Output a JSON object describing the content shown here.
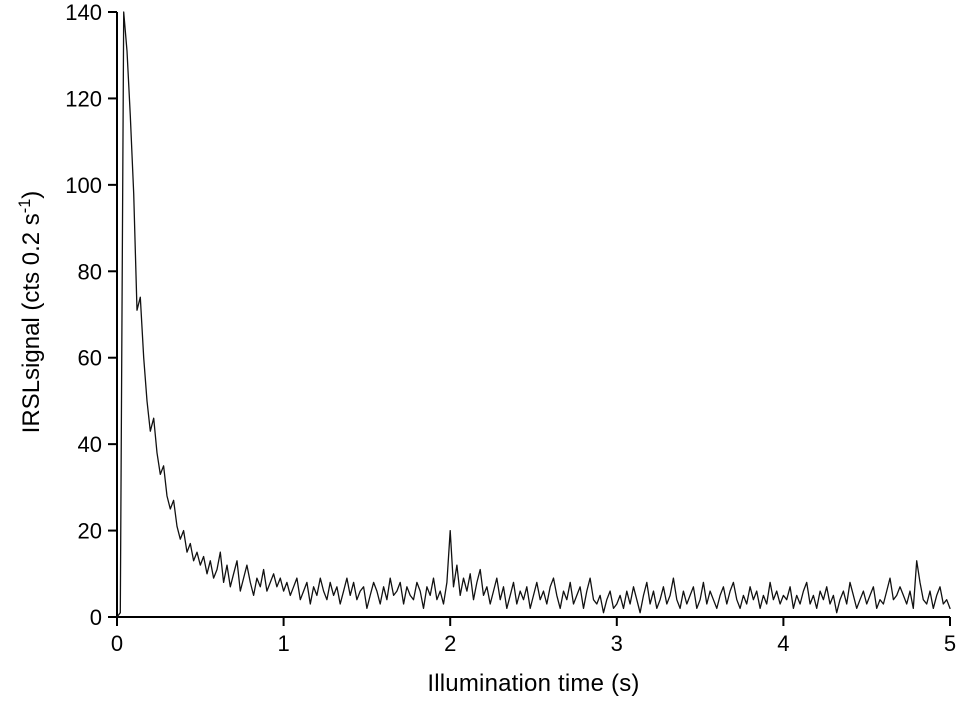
{
  "figure": {
    "background": "#ffffff",
    "line_color": "#111111",
    "axis_color": "#000000"
  },
  "chart_data": {
    "type": "line",
    "title": "",
    "xlabel": "Illumination time (s)",
    "ylabel_main": "IRSLsignal (cts 0.2 s",
    "ylabel_sup": "-1",
    "ylabel_close": ")",
    "xlim": [
      0,
      5
    ],
    "ylim": [
      0,
      140
    ],
    "xticks": [
      0,
      1,
      2,
      3,
      4,
      5
    ],
    "yticks": [
      0,
      20,
      40,
      60,
      80,
      100,
      120,
      140
    ],
    "legend": "none",
    "grid": "off",
    "x_start": 0,
    "x_step": 0.02,
    "values": [
      0,
      1,
      140,
      131,
      116,
      98,
      71,
      74,
      60,
      50,
      43,
      46,
      38,
      33,
      35,
      28,
      25,
      27,
      21,
      18,
      20,
      15,
      17,
      13,
      15,
      12,
      14,
      10,
      13,
      9,
      11,
      15,
      8,
      12,
      7,
      10,
      13,
      6,
      9,
      12,
      8,
      5,
      9,
      7,
      11,
      6,
      8,
      10,
      7,
      9,
      6,
      8,
      5,
      7,
      9,
      4,
      6,
      8,
      3,
      7,
      5,
      9,
      6,
      4,
      8,
      5,
      7,
      3,
      6,
      9,
      5,
      8,
      4,
      6,
      7,
      2,
      5,
      8,
      6,
      3,
      7,
      4,
      9,
      5,
      6,
      8,
      3,
      7,
      5,
      4,
      8,
      6,
      2,
      7,
      5,
      9,
      4,
      6,
      3,
      8,
      20,
      7,
      12,
      5,
      9,
      6,
      10,
      4,
      8,
      11,
      5,
      7,
      3,
      6,
      9,
      4,
      7,
      2,
      5,
      8,
      3,
      6,
      4,
      7,
      2,
      5,
      8,
      4,
      6,
      3,
      7,
      9,
      5,
      2,
      6,
      4,
      8,
      3,
      5,
      7,
      2,
      6,
      9,
      4,
      3,
      5,
      1,
      4,
      6,
      2,
      3,
      5,
      2,
      6,
      3,
      7,
      4,
      1,
      5,
      8,
      3,
      6,
      2,
      4,
      7,
      3,
      5,
      9,
      4,
      2,
      6,
      3,
      5,
      7,
      2,
      4,
      8,
      3,
      6,
      4,
      2,
      5,
      7,
      3,
      6,
      8,
      4,
      2,
      5,
      3,
      7,
      4,
      6,
      2,
      5,
      3,
      8,
      4,
      6,
      3,
      5,
      4,
      7,
      2,
      5,
      3,
      6,
      8,
      3,
      5,
      2,
      6,
      4,
      7,
      3,
      5,
      1,
      4,
      6,
      3,
      8,
      5,
      2,
      4,
      6,
      3,
      5,
      7,
      2,
      4,
      3,
      6,
      9,
      4,
      5,
      7,
      5,
      3,
      6,
      2,
      13,
      8,
      4,
      3,
      6,
      2,
      5,
      7,
      3,
      4,
      2
    ]
  }
}
